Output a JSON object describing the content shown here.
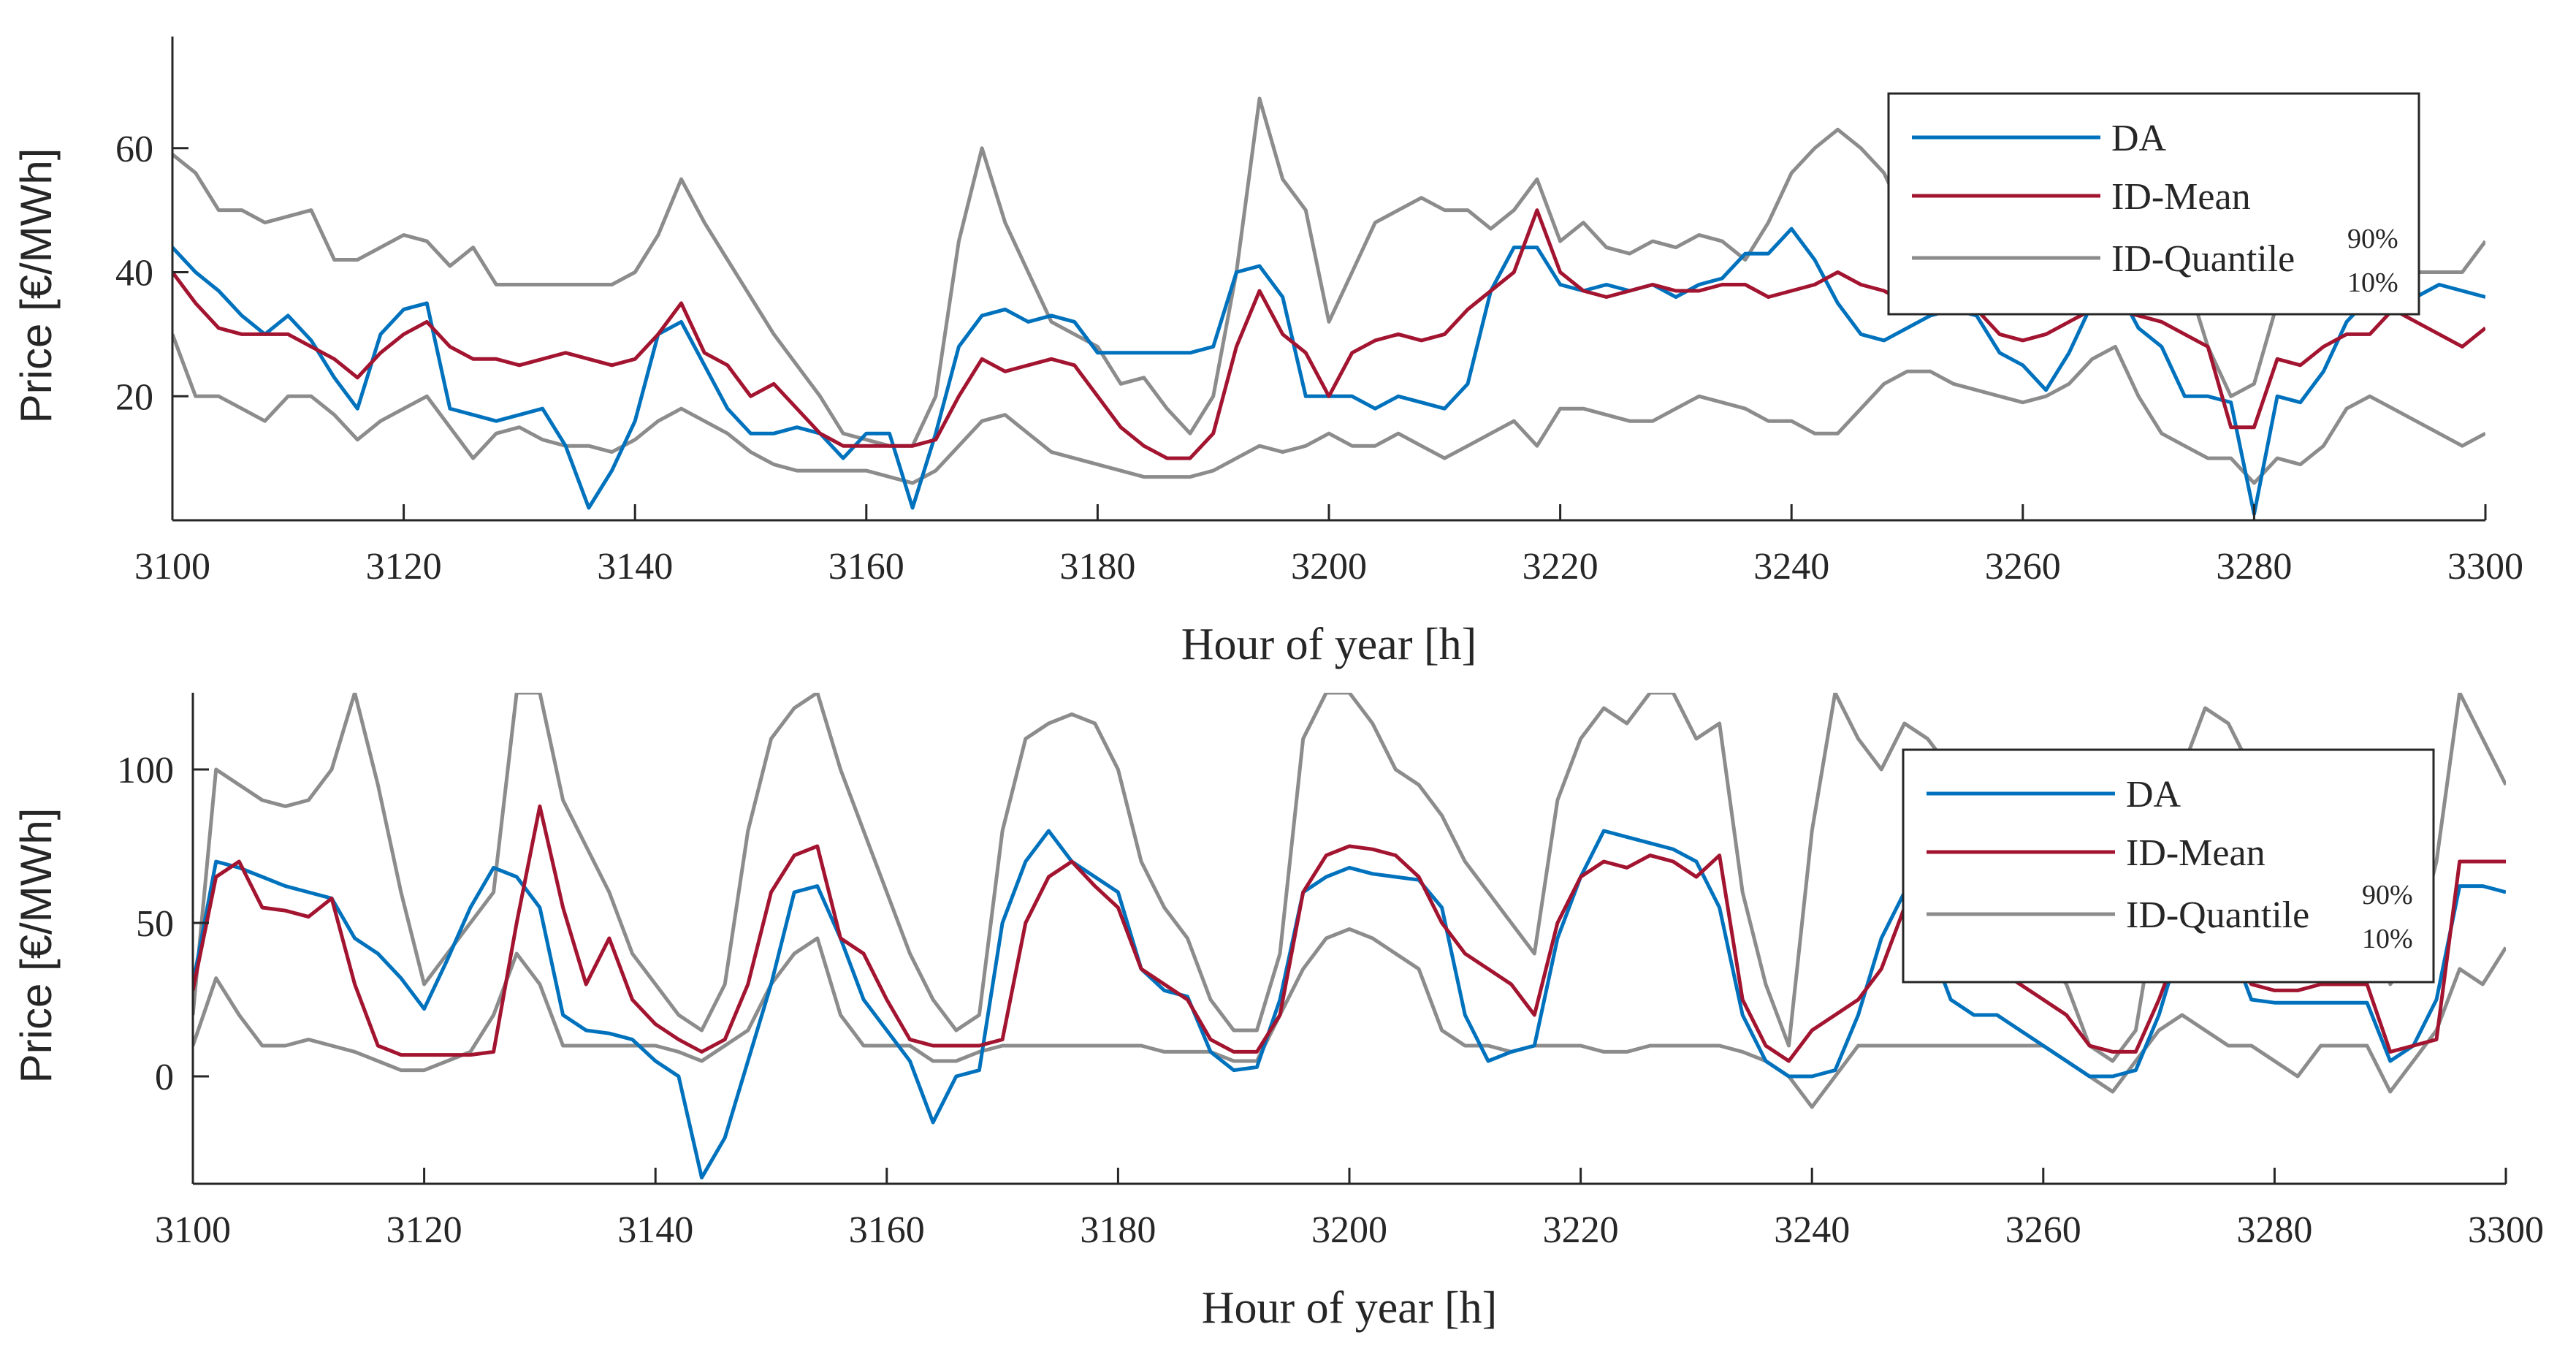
{
  "chart_data": [
    {
      "type": "line",
      "title": "",
      "xlabel": "Hour of year [h]",
      "ylabel": "Price [€/MWh]",
      "xlim": [
        3100,
        3300
      ],
      "ylim": [
        0,
        78
      ],
      "xticks": [
        3100,
        3120,
        3140,
        3160,
        3180,
        3200,
        3220,
        3240,
        3260,
        3280,
        3300
      ],
      "yticks": [
        20,
        40,
        60
      ],
      "grid": false,
      "legend_position": "top-right",
      "legend": {
        "items": [
          {
            "label": "DA",
            "color": "#0072BD"
          },
          {
            "label": "ID-Mean",
            "color": "#A2142F"
          },
          {
            "label": "ID-Quantile",
            "sup": "90%",
            "sub": "10%",
            "color": "#8C8C8C"
          }
        ]
      },
      "x": [
        3100,
        3102,
        3104,
        3106,
        3108,
        3110,
        3112,
        3114,
        3116,
        3118,
        3120,
        3122,
        3124,
        3126,
        3128,
        3130,
        3132,
        3134,
        3136,
        3138,
        3140,
        3142,
        3144,
        3146,
        3148,
        3150,
        3152,
        3154,
        3156,
        3158,
        3160,
        3162,
        3164,
        3166,
        3168,
        3170,
        3172,
        3174,
        3176,
        3178,
        3180,
        3182,
        3184,
        3186,
        3188,
        3190,
        3192,
        3194,
        3196,
        3198,
        3200,
        3202,
        3204,
        3206,
        3208,
        3210,
        3212,
        3214,
        3216,
        3218,
        3220,
        3222,
        3224,
        3226,
        3228,
        3230,
        3232,
        3234,
        3236,
        3238,
        3240,
        3242,
        3244,
        3246,
        3248,
        3250,
        3252,
        3254,
        3256,
        3258,
        3260,
        3262,
        3264,
        3266,
        3268,
        3270,
        3272,
        3274,
        3276,
        3278,
        3280,
        3282,
        3284,
        3286,
        3288,
        3290,
        3292,
        3294,
        3296,
        3298,
        3300
      ],
      "series": [
        {
          "name": "DA",
          "color": "#0072BD",
          "values": [
            44,
            40,
            37,
            33,
            30,
            33,
            29,
            23,
            18,
            30,
            34,
            35,
            18,
            17,
            16,
            17,
            18,
            12,
            2,
            8,
            16,
            30,
            32,
            25,
            18,
            14,
            14,
            15,
            14,
            10,
            14,
            14,
            2,
            14,
            28,
            33,
            34,
            32,
            33,
            32,
            27,
            27,
            27,
            27,
            27,
            28,
            40,
            41,
            36,
            20,
            20,
            20,
            18,
            20,
            19,
            18,
            22,
            37,
            44,
            44,
            38,
            37,
            38,
            37,
            38,
            36,
            38,
            39,
            43,
            43,
            47,
            42,
            35,
            30,
            29,
            31,
            33,
            34,
            33,
            27,
            25,
            21,
            27,
            35,
            38,
            31,
            28,
            20,
            20,
            19,
            1,
            20,
            19,
            24,
            32,
            36,
            37,
            36,
            38,
            37,
            36
          ]
        },
        {
          "name": "ID-Mean",
          "color": "#A2142F",
          "values": [
            40,
            35,
            31,
            30,
            30,
            30,
            28,
            26,
            23,
            27,
            30,
            32,
            28,
            26,
            26,
            25,
            26,
            27,
            26,
            25,
            26,
            30,
            35,
            27,
            25,
            20,
            22,
            18,
            14,
            12,
            12,
            12,
            12,
            13,
            20,
            26,
            24,
            25,
            26,
            25,
            20,
            15,
            12,
            10,
            10,
            14,
            28,
            37,
            30,
            27,
            20,
            27,
            29,
            30,
            29,
            30,
            34,
            37,
            40,
            50,
            40,
            37,
            36,
            37,
            38,
            37,
            37,
            38,
            38,
            36,
            37,
            38,
            40,
            38,
            37,
            35,
            34,
            34,
            34,
            30,
            29,
            30,
            32,
            34,
            34,
            33,
            32,
            30,
            28,
            15,
            15,
            26,
            25,
            28,
            30,
            30,
            34,
            32,
            30,
            28,
            31
          ]
        },
        {
          "name": "ID-Quantile 90%",
          "color": "#8C8C8C",
          "values": [
            59,
            56,
            50,
            50,
            48,
            49,
            50,
            42,
            42,
            44,
            46,
            45,
            41,
            44,
            38,
            38,
            38,
            38,
            38,
            38,
            40,
            46,
            55,
            48,
            42,
            36,
            30,
            25,
            20,
            14,
            13,
            12,
            12,
            20,
            45,
            60,
            48,
            40,
            32,
            30,
            28,
            22,
            23,
            18,
            14,
            20,
            40,
            68,
            55,
            50,
            32,
            40,
            48,
            50,
            52,
            50,
            50,
            47,
            50,
            55,
            45,
            48,
            44,
            43,
            45,
            44,
            46,
            45,
            42,
            48,
            56,
            60,
            63,
            60,
            56,
            48,
            45,
            43,
            40,
            38,
            36,
            35,
            38,
            45,
            48,
            48,
            44,
            40,
            28,
            20,
            22,
            35,
            36,
            35,
            38,
            40,
            44,
            40,
            40,
            40,
            45
          ]
        },
        {
          "name": "ID-Quantile 10%",
          "color": "#8C8C8C",
          "values": [
            30,
            20,
            20,
            18,
            16,
            20,
            20,
            17,
            13,
            16,
            18,
            20,
            15,
            10,
            14,
            15,
            13,
            12,
            12,
            11,
            13,
            16,
            18,
            16,
            14,
            11,
            9,
            8,
            8,
            8,
            8,
            7,
            6,
            8,
            12,
            16,
            17,
            14,
            11,
            10,
            9,
            8,
            7,
            7,
            7,
            8,
            10,
            12,
            11,
            12,
            14,
            12,
            12,
            14,
            12,
            10,
            12,
            14,
            16,
            12,
            18,
            18,
            17,
            16,
            16,
            18,
            20,
            19,
            18,
            16,
            16,
            14,
            14,
            18,
            22,
            24,
            24,
            22,
            21,
            20,
            19,
            20,
            22,
            26,
            28,
            20,
            14,
            12,
            10,
            10,
            6,
            10,
            9,
            12,
            18,
            20,
            18,
            16,
            14,
            12,
            14
          ]
        }
      ]
    },
    {
      "type": "line",
      "title": "",
      "xlabel": "Hour of year [h]",
      "ylabel": "Price [€/MWh]",
      "xlim": [
        3100,
        3300
      ],
      "ylim": [
        -35,
        125
      ],
      "xticks": [
        3100,
        3120,
        3140,
        3160,
        3180,
        3200,
        3220,
        3240,
        3260,
        3280,
        3300
      ],
      "yticks": [
        0,
        50,
        100
      ],
      "grid": false,
      "legend_position": "top-right",
      "legend": {
        "items": [
          {
            "label": "DA",
            "color": "#0072BD"
          },
          {
            "label": "ID-Mean",
            "color": "#A2142F"
          },
          {
            "label": "ID-Quantile",
            "sup": "90%",
            "sub": "10%",
            "color": "#8C8C8C"
          }
        ]
      },
      "x": [
        3100,
        3102,
        3104,
        3106,
        3108,
        3110,
        3112,
        3114,
        3116,
        3118,
        3120,
        3122,
        3124,
        3126,
        3128,
        3130,
        3132,
        3134,
        3136,
        3138,
        3140,
        3142,
        3144,
        3146,
        3148,
        3150,
        3152,
        3154,
        3156,
        3158,
        3160,
        3162,
        3164,
        3166,
        3168,
        3170,
        3172,
        3174,
        3176,
        3178,
        3180,
        3182,
        3184,
        3186,
        3188,
        3190,
        3192,
        3194,
        3196,
        3198,
        3200,
        3202,
        3204,
        3206,
        3208,
        3210,
        3212,
        3214,
        3216,
        3218,
        3220,
        3222,
        3224,
        3226,
        3228,
        3230,
        3232,
        3234,
        3236,
        3238,
        3240,
        3242,
        3244,
        3246,
        3248,
        3250,
        3252,
        3254,
        3256,
        3258,
        3260,
        3262,
        3264,
        3266,
        3268,
        3270,
        3272,
        3274,
        3276,
        3278,
        3280,
        3282,
        3284,
        3286,
        3288,
        3290,
        3292,
        3294,
        3296,
        3298,
        3300
      ],
      "series": [
        {
          "name": "DA",
          "color": "#0072BD",
          "values": [
            30,
            70,
            68,
            65,
            62,
            60,
            58,
            45,
            40,
            32,
            22,
            38,
            55,
            68,
            65,
            55,
            20,
            15,
            14,
            12,
            5,
            0,
            -33,
            -20,
            5,
            30,
            60,
            62,
            45,
            25,
            15,
            5,
            -15,
            0,
            2,
            50,
            70,
            80,
            70,
            65,
            60,
            35,
            28,
            26,
            8,
            2,
            3,
            25,
            60,
            65,
            68,
            66,
            65,
            64,
            55,
            20,
            5,
            8,
            10,
            45,
            65,
            80,
            78,
            76,
            74,
            70,
            55,
            20,
            5,
            0,
            0,
            2,
            20,
            45,
            60,
            45,
            25,
            20,
            20,
            15,
            10,
            5,
            0,
            0,
            2,
            20,
            45,
            55,
            45,
            25,
            24,
            24,
            24,
            24,
            24,
            5,
            10,
            25,
            62,
            62,
            60
          ]
        },
        {
          "name": "ID-Mean",
          "color": "#A2142F",
          "values": [
            28,
            65,
            70,
            55,
            54,
            52,
            58,
            30,
            10,
            7,
            7,
            7,
            7,
            8,
            50,
            88,
            55,
            30,
            45,
            25,
            17,
            12,
            8,
            12,
            30,
            60,
            72,
            75,
            45,
            40,
            25,
            12,
            10,
            10,
            10,
            12,
            50,
            65,
            70,
            62,
            55,
            35,
            30,
            25,
            12,
            8,
            8,
            20,
            60,
            72,
            75,
            74,
            72,
            65,
            50,
            40,
            35,
            30,
            20,
            50,
            65,
            70,
            68,
            72,
            70,
            65,
            72,
            25,
            10,
            5,
            15,
            20,
            25,
            35,
            55,
            65,
            55,
            45,
            35,
            30,
            25,
            20,
            10,
            8,
            8,
            25,
            45,
            50,
            40,
            30,
            28,
            28,
            30,
            30,
            30,
            8,
            10,
            12,
            70,
            70,
            70
          ]
        },
        {
          "name": "ID-Quantile 90%",
          "color": "#8C8C8C",
          "values": [
            20,
            100,
            95,
            90,
            88,
            90,
            100,
            125,
            95,
            60,
            30,
            40,
            50,
            60,
            125,
            125,
            90,
            75,
            60,
            40,
            30,
            20,
            15,
            30,
            80,
            110,
            120,
            125,
            100,
            80,
            60,
            40,
            25,
            15,
            20,
            80,
            110,
            115,
            118,
            115,
            100,
            70,
            55,
            45,
            25,
            15,
            15,
            40,
            110,
            125,
            125,
            115,
            100,
            95,
            85,
            70,
            60,
            50,
            40,
            90,
            110,
            120,
            115,
            125,
            125,
            110,
            115,
            60,
            30,
            10,
            80,
            125,
            110,
            100,
            115,
            110,
            100,
            80,
            60,
            50,
            40,
            30,
            10,
            5,
            15,
            60,
            100,
            120,
            115,
            100,
            95,
            90,
            95,
            100,
            90,
            30,
            40,
            70,
            125,
            110,
            95
          ]
        },
        {
          "name": "ID-Quantile 10%",
          "color": "#8C8C8C",
          "values": [
            10,
            32,
            20,
            10,
            10,
            12,
            10,
            8,
            5,
            2,
            2,
            5,
            8,
            20,
            40,
            30,
            10,
            10,
            10,
            10,
            10,
            8,
            5,
            10,
            15,
            30,
            40,
            45,
            20,
            10,
            10,
            10,
            5,
            5,
            8,
            10,
            10,
            10,
            10,
            10,
            10,
            10,
            8,
            8,
            8,
            5,
            5,
            20,
            35,
            45,
            48,
            45,
            40,
            35,
            15,
            10,
            10,
            8,
            10,
            10,
            10,
            8,
            8,
            10,
            10,
            10,
            10,
            8,
            5,
            0,
            -10,
            0,
            10,
            10,
            10,
            10,
            10,
            10,
            10,
            10,
            10,
            5,
            0,
            -5,
            5,
            15,
            20,
            15,
            10,
            10,
            5,
            0,
            10,
            10,
            10,
            -5,
            5,
            15,
            35,
            30,
            42
          ]
        }
      ]
    }
  ]
}
